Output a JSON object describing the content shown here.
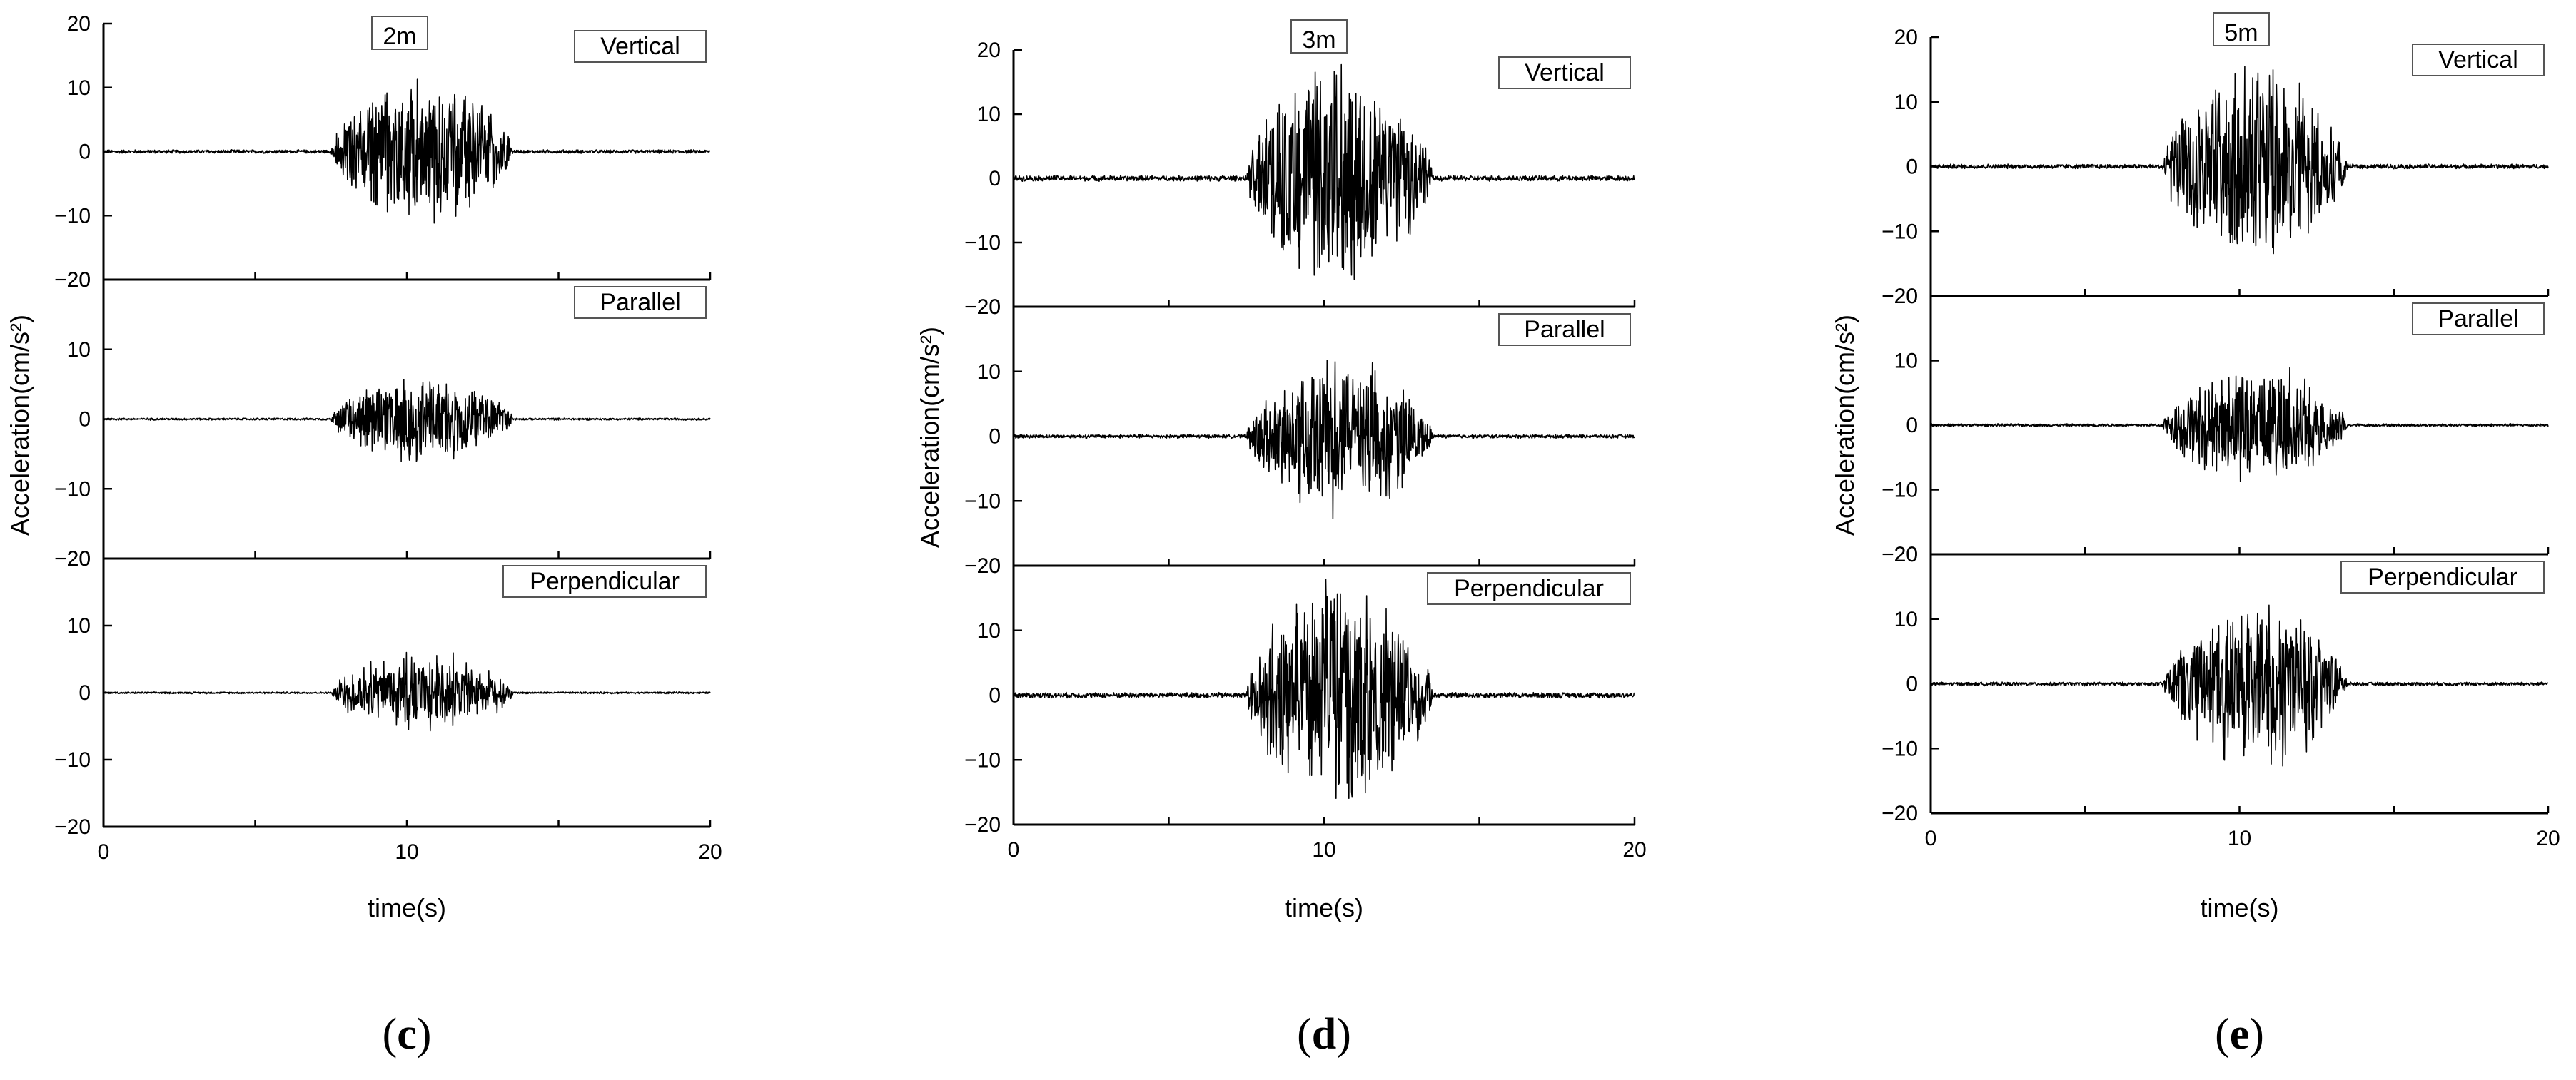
{
  "chart_data": [
    {
      "type": "line",
      "title": "2m",
      "caption": "c",
      "xlabel": "time(s)",
      "ylabel": "Acceleration(cm/s²)",
      "xlim": [
        0,
        20
      ],
      "x_ticks": [
        "0",
        "10",
        "20"
      ],
      "shared_x": true,
      "subplots": [
        {
          "name": "Vertical",
          "ylim": [
            -20,
            20
          ],
          "y_ticks": [
            "20",
            "10",
            "0",
            "−10",
            "−20"
          ],
          "peak_positive": 12.5,
          "peak_negative": -12,
          "strong_motion": [
            7.5,
            13.5
          ]
        },
        {
          "name": "Parallel",
          "ylim": [
            -20,
            20
          ],
          "y_ticks": [
            "20",
            "10",
            "0",
            "−10",
            "−20"
          ],
          "peak_positive": 6.5,
          "peak_negative": -7,
          "strong_motion": [
            7.5,
            13.5
          ]
        },
        {
          "name": "Perpendicular",
          "ylim": [
            -20,
            20
          ],
          "y_ticks": [
            "20",
            "10",
            "0",
            "−10",
            "−20"
          ],
          "peak_positive": 5,
          "peak_negative": -7,
          "strong_motion": [
            7.5,
            13.5
          ]
        }
      ]
    },
    {
      "type": "line",
      "title": "3m",
      "caption": "d",
      "xlabel": "time(s)",
      "ylabel": "Acceleration(cm/s²)",
      "xlim": [
        0,
        20
      ],
      "x_ticks": [
        "0",
        "10",
        "20"
      ],
      "shared_x": true,
      "subplots": [
        {
          "name": "Vertical",
          "ylim": [
            -20,
            20
          ],
          "y_ticks": [
            "20",
            "10",
            "0",
            "−10",
            "−20"
          ],
          "peak_positive": 19,
          "peak_negative": -19,
          "strong_motion": [
            7.5,
            13.5
          ]
        },
        {
          "name": "Parallel",
          "ylim": [
            -20,
            20
          ],
          "y_ticks": [
            "20",
            "10",
            "0",
            "−10",
            "−20"
          ],
          "peak_positive": 11,
          "peak_negative": -13.5,
          "strong_motion": [
            7.5,
            13.5
          ]
        },
        {
          "name": "Perpendicular",
          "ylim": [
            -20,
            20
          ],
          "y_ticks": [
            "20",
            "10",
            "0",
            "−10",
            "−20"
          ],
          "peak_positive": 18.5,
          "peak_negative": -18.5,
          "strong_motion": [
            7.5,
            13.5
          ]
        }
      ]
    },
    {
      "type": "line",
      "title": "5m",
      "caption": "e",
      "xlabel": "time(s)",
      "ylabel": "Acceleration(cm/s²)",
      "xlim": [
        0,
        20
      ],
      "x_ticks": [
        "0",
        "10",
        "20"
      ],
      "shared_x": true,
      "subplots": [
        {
          "name": "Vertical",
          "ylim": [
            -20,
            20
          ],
          "y_ticks": [
            "20",
            "10",
            "0",
            "−10",
            "−20"
          ],
          "peak_positive": 17,
          "peak_negative": -14.5,
          "strong_motion": [
            7.5,
            13.5
          ]
        },
        {
          "name": "Parallel",
          "ylim": [
            -20,
            20
          ],
          "y_ticks": [
            "20",
            "10",
            "0",
            "−10",
            "−20"
          ],
          "peak_positive": 10,
          "peak_negative": -9.5,
          "strong_motion": [
            7.5,
            13.5
          ]
        },
        {
          "name": "Perpendicular",
          "ylim": [
            -20,
            20
          ],
          "y_ticks": [
            "20",
            "10",
            "0",
            "−10",
            "−20"
          ],
          "peak_positive": 11,
          "peak_negative": -14.5,
          "strong_motion": [
            7.5,
            13.5
          ]
        }
      ]
    }
  ]
}
